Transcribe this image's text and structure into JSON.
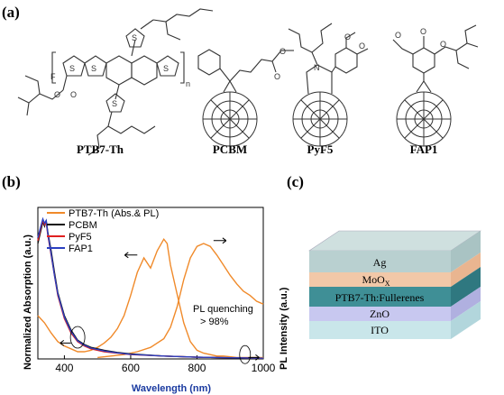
{
  "panel_a": {
    "letter": "(a)",
    "molecules": [
      {
        "label": "PTB7-Th"
      },
      {
        "label": "PCBM"
      },
      {
        "label": "PyF5"
      },
      {
        "label": "FAP1"
      }
    ],
    "atoms": {
      "F": "F",
      "S": "S",
      "O": "O",
      "N": "N",
      "n": "n"
    }
  },
  "panel_b": {
    "letter": "(b)",
    "chart_data": {
      "type": "line",
      "xlabel": "Wavelength (nm)",
      "ylabel_left": "Normalized Absorption (a.u.)",
      "ylabel_right": "PL Intensity (a.u.)",
      "xlim": [
        320,
        1000
      ],
      "xticks": [
        400,
        600,
        800,
        1000
      ],
      "xtick_labels": [
        "400",
        "600",
        "800",
        "1000"
      ],
      "ylim": [
        0,
        1.05
      ],
      "legend_position": "top-left",
      "annotation": [
        "PL quenching",
        "> 98%"
      ],
      "series": [
        {
          "name": "PTB7-Th (Abs.& PL)",
          "color": "#f08a2a",
          "x": [
            320,
            340,
            360,
            380,
            400,
            420,
            440,
            460,
            480,
            500,
            520,
            540,
            560,
            580,
            600,
            620,
            640,
            660,
            680,
            700,
            710,
            720,
            740,
            760,
            780,
            800,
            820,
            840,
            860,
            880,
            900,
            920,
            940,
            960,
            980,
            1000
          ],
          "y": [
            0.3,
            0.25,
            0.18,
            0.12,
            0.09,
            0.07,
            0.05,
            0.05,
            0.06,
            0.08,
            0.11,
            0.15,
            0.21,
            0.3,
            0.44,
            0.6,
            0.7,
            0.63,
            0.75,
            0.83,
            0.8,
            0.65,
            0.45,
            0.25,
            0.12,
            0.06,
            0.04,
            0.03,
            0.02,
            0.02,
            0.015,
            0.01,
            0.01,
            0.01,
            0.01,
            0.01
          ]
        },
        {
          "name": "PTB7-Th PL",
          "color": "#f08a2a",
          "x": [
            500,
            540,
            580,
            620,
            660,
            700,
            720,
            740,
            760,
            780,
            800,
            820,
            840,
            860,
            880,
            900,
            920,
            940,
            960,
            980,
            1000
          ],
          "y": [
            0.01,
            0.02,
            0.03,
            0.05,
            0.08,
            0.14,
            0.22,
            0.36,
            0.55,
            0.7,
            0.78,
            0.8,
            0.78,
            0.72,
            0.65,
            0.58,
            0.52,
            0.47,
            0.44,
            0.4,
            0.38
          ]
        },
        {
          "name": "PCBM",
          "color": "#111111",
          "x": [
            320,
            330,
            335,
            340,
            345,
            350,
            360,
            370,
            380,
            400,
            420,
            440,
            460,
            480,
            500,
            520,
            560,
            600,
            700,
            800,
            900,
            1000
          ],
          "y": [
            0.8,
            0.9,
            0.95,
            0.92,
            0.96,
            0.88,
            0.75,
            0.6,
            0.46,
            0.3,
            0.2,
            0.13,
            0.1,
            0.08,
            0.07,
            0.06,
            0.045,
            0.035,
            0.02,
            0.012,
            0.008,
            0.005
          ]
        },
        {
          "name": "PyF5",
          "color": "#e02020",
          "x": [
            320,
            330,
            335,
            340,
            345,
            350,
            360,
            370,
            380,
            400,
            420,
            440,
            460,
            480,
            500,
            520,
            560,
            600,
            700,
            800,
            900,
            1000
          ],
          "y": [
            0.82,
            0.92,
            0.96,
            0.93,
            0.95,
            0.86,
            0.72,
            0.58,
            0.44,
            0.28,
            0.18,
            0.12,
            0.09,
            0.07,
            0.06,
            0.05,
            0.04,
            0.03,
            0.02,
            0.012,
            0.008,
            0.005
          ]
        },
        {
          "name": "FAP1",
          "color": "#2a3fc0",
          "x": [
            320,
            330,
            335,
            340,
            345,
            350,
            360,
            370,
            380,
            400,
            420,
            440,
            460,
            480,
            500,
            520,
            560,
            600,
            700,
            800,
            900,
            1000
          ],
          "y": [
            0.84,
            0.93,
            0.97,
            0.94,
            0.96,
            0.87,
            0.73,
            0.58,
            0.45,
            0.29,
            0.19,
            0.125,
            0.095,
            0.075,
            0.065,
            0.055,
            0.042,
            0.032,
            0.02,
            0.012,
            0.008,
            0.005
          ]
        }
      ]
    }
  },
  "panel_c": {
    "letter": "(c)",
    "layers": [
      {
        "label": "Ag",
        "color": "#b9d0d0"
      },
      {
        "label": "MoO",
        "sub": "X",
        "color": "#f2c8a8"
      },
      {
        "label": "PTB7-Th:Fullerenes",
        "color": "#3f8f96"
      },
      {
        "label": "ZnO",
        "color": "#c8c8f0"
      },
      {
        "label": "ITO",
        "color": "#c9e6ea"
      }
    ]
  }
}
